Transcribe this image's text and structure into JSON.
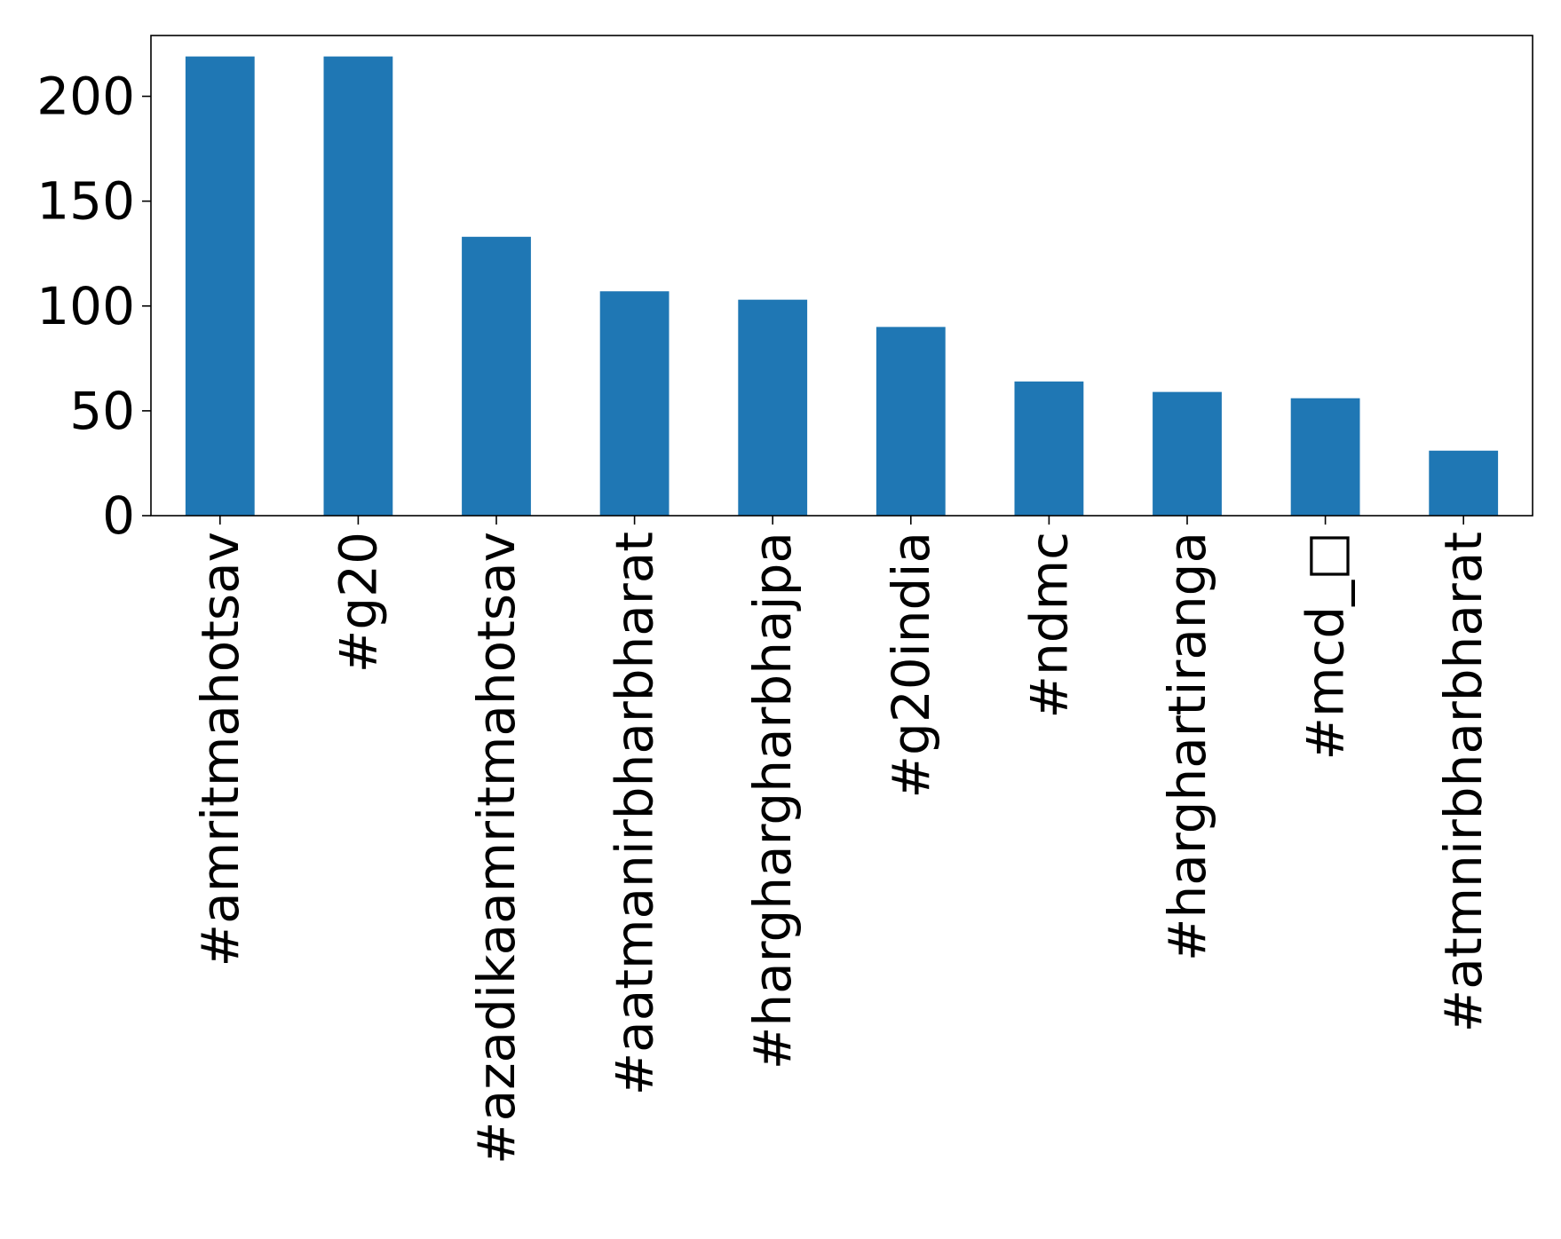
{
  "chart_data": {
    "type": "bar",
    "categories": [
      "#amritmahotsav",
      "#g20",
      "#azadikaamritmahotsav",
      "#aatmanirbharbharat",
      "#harghargharbhajpa",
      "#g20india",
      "#ndmc",
      "#harghartiranga",
      "#mcd_□",
      "#atmnirbharbharat"
    ],
    "values": [
      219,
      219,
      133,
      107,
      103,
      90,
      64,
      59,
      56,
      31
    ],
    "title": "",
    "xlabel": "",
    "ylabel": "",
    "ylim": [
      0,
      229
    ],
    "yticks": [
      0,
      50,
      100,
      150,
      200
    ],
    "grid": false,
    "legend": "none",
    "colors": {
      "bar": "#1f77b4",
      "axis": "#000000",
      "background": "#ffffff"
    }
  }
}
